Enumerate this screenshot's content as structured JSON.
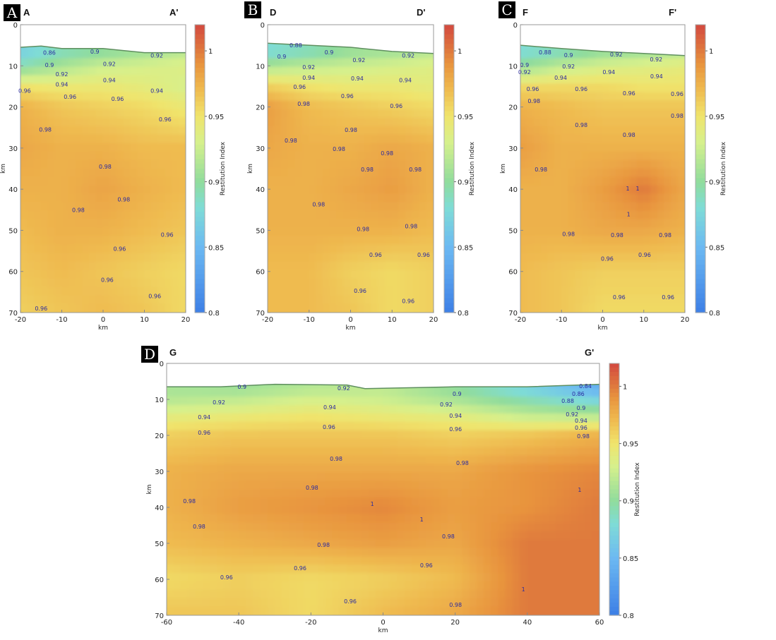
{
  "colorscale": {
    "stops": [
      [
        0.8,
        "#3d7fe6"
      ],
      [
        0.85,
        "#6cb9f2"
      ],
      [
        0.88,
        "#7fdcd6"
      ],
      [
        0.9,
        "#90dc9c"
      ],
      [
        0.93,
        "#d6f08c"
      ],
      [
        0.95,
        "#f0e46c"
      ],
      [
        0.97,
        "#efbb50"
      ],
      [
        0.99,
        "#e8943e"
      ],
      [
        1.0,
        "#df7a3e"
      ],
      [
        1.02,
        "#d3483f"
      ]
    ],
    "contour_label_color": "#2a2aa0",
    "surface_line_color": "#5f8f5f"
  },
  "chart_data": [
    {
      "type": "heatmap",
      "badge": "A",
      "title_left": "A",
      "title_right": "A'",
      "xlabel": "km",
      "ylabel": "km",
      "colorbar_label": "Restitution Index",
      "xlim": [
        -20,
        20
      ],
      "ylim": [
        70,
        0
      ],
      "xticks": [
        -20,
        -10,
        0,
        10,
        20
      ],
      "yticks": [
        0,
        10,
        20,
        30,
        40,
        50,
        60,
        70
      ],
      "colorbar_range": [
        0.8,
        1.02
      ],
      "colorbar_ticks": [
        "0.8",
        "0.85",
        "0.9",
        "0.95",
        "1"
      ],
      "x": [
        -20,
        -10,
        0,
        10,
        20
      ],
      "depth": [
        7,
        10,
        15,
        20,
        30,
        40,
        50,
        60,
        70
      ],
      "values": [
        [
          0.87,
          0.89,
          0.9,
          0.91,
          0.92
        ],
        [
          0.89,
          0.91,
          0.925,
          0.93,
          0.935
        ],
        [
          0.95,
          0.945,
          0.945,
          0.94,
          0.93
        ],
        [
          0.975,
          0.965,
          0.96,
          0.955,
          0.945
        ],
        [
          0.98,
          0.975,
          0.975,
          0.97,
          0.97
        ],
        [
          0.975,
          0.975,
          0.982,
          0.975,
          0.97
        ],
        [
          0.97,
          0.975,
          0.975,
          0.97,
          0.965
        ],
        [
          0.965,
          0.97,
          0.965,
          0.96,
          0.955
        ],
        [
          0.96,
          0.965,
          0.97,
          0.965,
          0.955
        ]
      ],
      "surface": [
        [
          -20,
          5.5
        ],
        [
          -15,
          5.2
        ],
        [
          -10,
          5.8
        ],
        [
          0,
          5.8
        ],
        [
          10,
          6.8
        ],
        [
          20,
          6.8
        ]
      ],
      "annotations": [
        [
          -13,
          6.8,
          "0.86"
        ],
        [
          -2,
          6.5,
          "0.9"
        ],
        [
          13,
          7.5,
          "0.92"
        ],
        [
          -13,
          9.8,
          "0.9"
        ],
        [
          1.5,
          9.5,
          "0.92"
        ],
        [
          -10,
          12,
          "0.92"
        ],
        [
          1.5,
          13.5,
          "0.94"
        ],
        [
          -10,
          14.5,
          "0.94"
        ],
        [
          13,
          16,
          "0.94"
        ],
        [
          -19,
          16,
          "0.96"
        ],
        [
          -8,
          17.5,
          "0.96"
        ],
        [
          3.5,
          18,
          "0.96"
        ],
        [
          15,
          23,
          "0.96"
        ],
        [
          -14,
          25.5,
          "0.98"
        ],
        [
          0.5,
          34.5,
          "0.98"
        ],
        [
          5,
          42.5,
          "0.98"
        ],
        [
          -6,
          45,
          "0.98"
        ],
        [
          15.5,
          51,
          "0.96"
        ],
        [
          4,
          54.5,
          "0.96"
        ],
        [
          1,
          62,
          "0.96"
        ],
        [
          12.5,
          66,
          "0.96"
        ],
        [
          -15,
          69,
          "0.96"
        ]
      ]
    },
    {
      "type": "heatmap",
      "badge": "B",
      "title_left": "D",
      "title_right": "D'",
      "xlabel": "km",
      "ylabel": "km",
      "colorbar_label": "Restitution Index",
      "xlim": [
        -20,
        20
      ],
      "ylim": [
        70,
        0
      ],
      "xticks": [
        -20,
        -10,
        0,
        10,
        20
      ],
      "yticks": [
        0,
        10,
        20,
        30,
        40,
        50,
        60,
        70
      ],
      "colorbar_range": [
        0.8,
        1.02
      ],
      "colorbar_ticks": [
        "0.8",
        "0.85",
        "0.9",
        "0.95",
        "1"
      ],
      "x": [
        -20,
        -10,
        0,
        10,
        20
      ],
      "depth": [
        7,
        10,
        15,
        20,
        30,
        40,
        50,
        60,
        70
      ],
      "values": [
        [
          0.88,
          0.89,
          0.905,
          0.91,
          0.92
        ],
        [
          0.91,
          0.92,
          0.925,
          0.93,
          0.935
        ],
        [
          0.96,
          0.95,
          0.945,
          0.945,
          0.94
        ],
        [
          0.985,
          0.97,
          0.965,
          0.96,
          0.955
        ],
        [
          0.98,
          0.975,
          0.975,
          0.98,
          0.975
        ],
        [
          0.975,
          0.975,
          0.98,
          0.985,
          0.975
        ],
        [
          0.975,
          0.975,
          0.975,
          0.975,
          0.97
        ],
        [
          0.97,
          0.97,
          0.96,
          0.955,
          0.96
        ],
        [
          0.97,
          0.97,
          0.965,
          0.955,
          0.96
        ]
      ],
      "surface": [
        [
          -20,
          4.5
        ],
        [
          -10,
          5
        ],
        [
          0,
          5.5
        ],
        [
          10,
          6.5
        ],
        [
          20,
          7
        ]
      ],
      "annotations": [
        [
          -13.2,
          5,
          "0.88"
        ],
        [
          -16.6,
          7.7,
          "0.9"
        ],
        [
          -5.2,
          6.7,
          "0.9"
        ],
        [
          13.9,
          7.5,
          "0.92"
        ],
        [
          2,
          8.6,
          "0.92"
        ],
        [
          -10.1,
          10.3,
          "0.92"
        ],
        [
          -10.1,
          12.9,
          "0.94"
        ],
        [
          1.6,
          13,
          "0.94"
        ],
        [
          13.2,
          13.5,
          "0.94"
        ],
        [
          -12.3,
          15.1,
          "0.96"
        ],
        [
          -0.8,
          17.3,
          "0.96"
        ],
        [
          11,
          19.7,
          "0.96"
        ],
        [
          -11.3,
          19.2,
          "0.98"
        ],
        [
          0.1,
          25.6,
          "0.98"
        ],
        [
          -14.4,
          28.1,
          "0.98"
        ],
        [
          -2.8,
          30.2,
          "0.98"
        ],
        [
          8.8,
          31.2,
          "0.98"
        ],
        [
          4,
          35.2,
          "0.98"
        ],
        [
          15.6,
          35.2,
          "0.98"
        ],
        [
          -7.7,
          43.7,
          "0.98"
        ],
        [
          3,
          49.7,
          "0.98"
        ],
        [
          14.6,
          49,
          "0.98"
        ],
        [
          6,
          55.9,
          "0.96"
        ],
        [
          17.6,
          55.9,
          "0.96"
        ],
        [
          2.3,
          64.7,
          "0.96"
        ],
        [
          13.9,
          67.2,
          "0.96"
        ]
      ]
    },
    {
      "type": "heatmap",
      "badge": "C",
      "title_left": "F",
      "title_right": "F'",
      "xlabel": "km",
      "ylabel": "km",
      "colorbar_label": "Restitution Index",
      "xlim": [
        -20,
        20
      ],
      "ylim": [
        70,
        0
      ],
      "xticks": [
        -20,
        -10,
        0,
        10,
        20
      ],
      "yticks": [
        0,
        10,
        20,
        30,
        40,
        50,
        60,
        70
      ],
      "colorbar_range": [
        0.8,
        1.02
      ],
      "colorbar_ticks": [
        "0.8",
        "0.85",
        "0.9",
        "0.95",
        "1"
      ],
      "x": [
        -20,
        -10,
        0,
        10,
        20
      ],
      "depth": [
        7,
        10,
        15,
        20,
        30,
        40,
        50,
        60,
        70
      ],
      "values": [
        [
          0.88,
          0.89,
          0.905,
          0.91,
          0.92
        ],
        [
          0.9,
          0.92,
          0.93,
          0.935,
          0.94
        ],
        [
          0.955,
          0.955,
          0.955,
          0.95,
          0.95
        ],
        [
          0.975,
          0.97,
          0.965,
          0.965,
          0.965
        ],
        [
          0.985,
          0.975,
          0.975,
          0.975,
          0.975
        ],
        [
          0.975,
          0.975,
          0.985,
          1.0,
          0.98
        ],
        [
          0.975,
          0.975,
          0.98,
          0.98,
          0.975
        ],
        [
          0.97,
          0.965,
          0.96,
          0.96,
          0.96
        ],
        [
          0.97,
          0.965,
          0.955,
          0.955,
          0.955
        ]
      ],
      "surface": [
        [
          -20,
          5
        ],
        [
          -10,
          5.8
        ],
        [
          0,
          6.5
        ],
        [
          10,
          7
        ],
        [
          20,
          7.5
        ]
      ],
      "annotations": [
        [
          -14,
          6.7,
          "0.88"
        ],
        [
          -19,
          9.8,
          "0.9"
        ],
        [
          -19,
          11.5,
          "0.92"
        ],
        [
          -8.3,
          7.4,
          "0.9"
        ],
        [
          3.3,
          7.2,
          "0.92"
        ],
        [
          13,
          8.4,
          "0.92"
        ],
        [
          -8.3,
          10.1,
          "0.92"
        ],
        [
          -10.2,
          12.9,
          "0.94"
        ],
        [
          1.5,
          11.5,
          "0.94"
        ],
        [
          13.1,
          12.5,
          "0.94"
        ],
        [
          -17,
          15.6,
          "0.96"
        ],
        [
          -5.2,
          15.6,
          "0.96"
        ],
        [
          6.4,
          16.6,
          "0.96"
        ],
        [
          18.1,
          16.8,
          "0.96"
        ],
        [
          -16.7,
          18.5,
          "0.98"
        ],
        [
          -5.2,
          24.4,
          "0.98"
        ],
        [
          6.4,
          26.8,
          "0.98"
        ],
        [
          18.1,
          22.1,
          "0.98"
        ],
        [
          -15,
          35.2,
          "0.98"
        ],
        [
          6.1,
          39.8,
          "1"
        ],
        [
          8.5,
          39.8,
          "1"
        ],
        [
          6.3,
          46.1,
          "1"
        ],
        [
          -8.3,
          50.9,
          "0.98"
        ],
        [
          3.5,
          51.1,
          "0.98"
        ],
        [
          15.2,
          51.1,
          "0.98"
        ],
        [
          1.1,
          56.9,
          "0.96"
        ],
        [
          10.2,
          55.9,
          "0.96"
        ],
        [
          4,
          66.2,
          "0.96"
        ],
        [
          15.9,
          66.2,
          "0.96"
        ]
      ]
    },
    {
      "type": "heatmap",
      "badge": "D",
      "title_left": "G",
      "title_right": "G'",
      "xlabel": "km",
      "ylabel": "km",
      "colorbar_label": "Restitution Index",
      "xlim": [
        -60,
        60
      ],
      "ylim": [
        70,
        0
      ],
      "xticks": [
        -60,
        -40,
        -20,
        0,
        20,
        40,
        60
      ],
      "yticks": [
        0,
        10,
        20,
        30,
        40,
        50,
        60,
        70
      ],
      "colorbar_range": [
        0.8,
        1.02
      ],
      "colorbar_ticks": [
        "0.8",
        "0.85",
        "0.9",
        "0.95",
        "1"
      ],
      "x": [
        -60,
        -40,
        -20,
        0,
        20,
        40,
        60
      ],
      "depth": [
        7,
        10,
        15,
        20,
        30,
        40,
        50,
        60,
        70
      ],
      "values": [
        [
          0.91,
          0.905,
          0.915,
          0.92,
          0.9,
          0.87,
          0.84
        ],
        [
          0.915,
          0.92,
          0.93,
          0.925,
          0.91,
          0.89,
          0.87
        ],
        [
          0.94,
          0.945,
          0.95,
          0.945,
          0.94,
          0.925,
          0.92
        ],
        [
          0.96,
          0.965,
          0.965,
          0.965,
          0.96,
          0.965,
          0.975
        ],
        [
          0.975,
          0.98,
          0.98,
          0.98,
          0.98,
          0.99,
          0.995
        ],
        [
          0.975,
          0.985,
          0.99,
          0.995,
          0.985,
          0.99,
          1.0
        ],
        [
          0.97,
          0.975,
          0.98,
          0.985,
          0.98,
          1.0,
          1.0
        ],
        [
          0.955,
          0.96,
          0.955,
          0.96,
          0.97,
          1.0,
          1.0
        ],
        [
          0.965,
          0.965,
          0.955,
          0.97,
          0.98,
          1.0,
          1.0
        ]
      ],
      "surface": [
        [
          -60,
          6.5
        ],
        [
          -45,
          6.5
        ],
        [
          -30,
          5.8
        ],
        [
          -10,
          6
        ],
        [
          -5,
          7
        ],
        [
          20,
          6.5
        ],
        [
          40,
          6.5
        ],
        [
          60,
          5.8
        ]
      ],
      "annotations": [
        [
          -39.1,
          6.5,
          "0.9"
        ],
        [
          -10.9,
          6.9,
          "0.92"
        ],
        [
          20.5,
          8.4,
          "0.9"
        ],
        [
          56.1,
          6.3,
          "0.84"
        ],
        [
          54.1,
          8.4,
          "0.86"
        ],
        [
          51.2,
          10.4,
          "0.88"
        ],
        [
          54.9,
          12.4,
          "0.9"
        ],
        [
          52.4,
          14.1,
          "0.92"
        ],
        [
          54.9,
          15.9,
          "0.94"
        ],
        [
          54.9,
          17.8,
          "0.96"
        ],
        [
          55.5,
          20.2,
          "0.98"
        ],
        [
          -45.5,
          10.8,
          "0.92"
        ],
        [
          -14.8,
          12.2,
          "0.94"
        ],
        [
          17.5,
          11.4,
          "0.92"
        ],
        [
          -49.6,
          14.9,
          "0.94"
        ],
        [
          20.1,
          14.5,
          "0.94"
        ],
        [
          -49.6,
          19.2,
          "0.96"
        ],
        [
          -15,
          17.6,
          "0.96"
        ],
        [
          20.1,
          18.2,
          "0.96"
        ],
        [
          -13,
          26.5,
          "0.98"
        ],
        [
          22,
          27.6,
          "0.98"
        ],
        [
          -19.7,
          34.5,
          "0.98"
        ],
        [
          -53.7,
          38.2,
          "0.98"
        ],
        [
          -3,
          39,
          "1"
        ],
        [
          10.7,
          43.3,
          "1"
        ],
        [
          54.5,
          35.1,
          "1"
        ],
        [
          -51,
          45.3,
          "0.98"
        ],
        [
          -16.5,
          50.4,
          "0.98"
        ],
        [
          18.1,
          48,
          "0.98"
        ],
        [
          -23,
          56.9,
          "0.96"
        ],
        [
          12,
          56.1,
          "0.96"
        ],
        [
          -43.4,
          59.4,
          "0.96"
        ],
        [
          -9.1,
          66.1,
          "0.96"
        ],
        [
          20.1,
          67.1,
          "0.98"
        ],
        [
          38.9,
          62.7,
          "1"
        ]
      ]
    }
  ]
}
